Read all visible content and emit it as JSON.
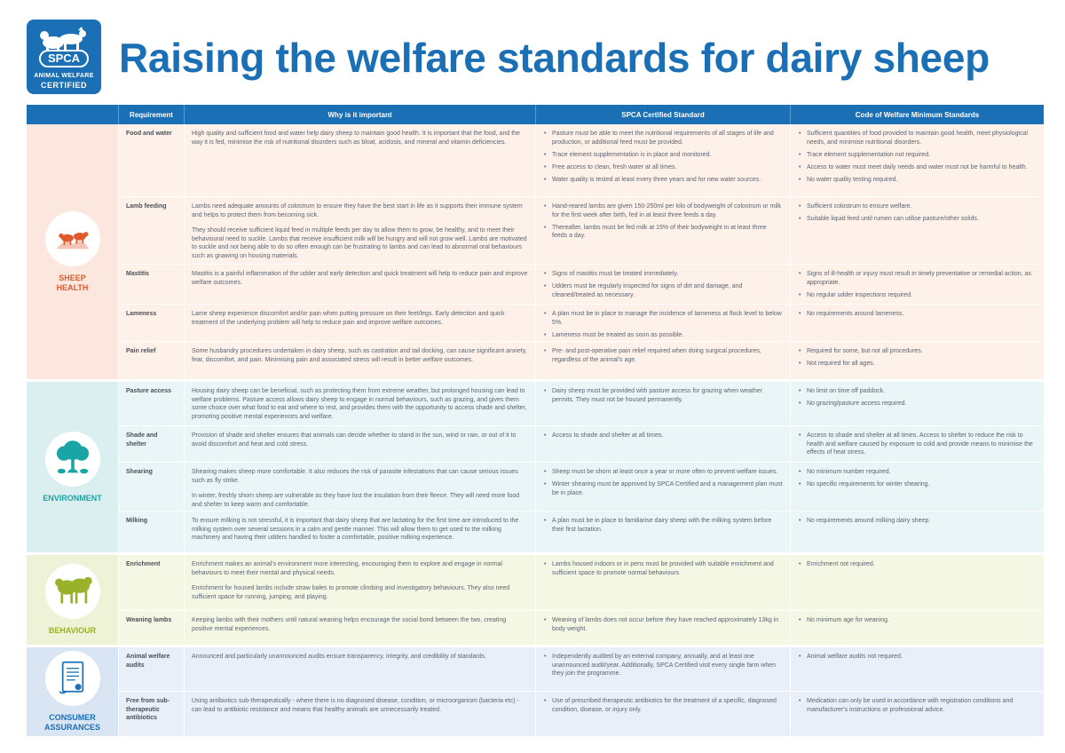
{
  "logo": {
    "name": "SPCA",
    "line1": "ANIMAL WELFARE",
    "line2": "CERTIFIED"
  },
  "title": "Raising the welfare standards for dairy sheep",
  "columns": {
    "requirement": "Requirement",
    "why": "Why is it important",
    "spca": "SPCA Certified Standard",
    "code": "Code of Welfare Minimum Standards"
  },
  "colors": {
    "brand": "#1a6fb5",
    "health": "#e05a2b",
    "environment": "#19a5a3",
    "behaviour": "#98b32a",
    "consumer": "#1a6fb5"
  },
  "sections": [
    {
      "label": "SHEEP HEALTH",
      "icon": "sheep-icon",
      "rows": [
        {
          "requirement": "Food and water",
          "why": [
            "High quality and sufficient food and water help dairy sheep to maintain good health. It is important that the food, and the way it is fed, minimise the risk of nutritional disorders such as bloat, acidosis, and mineral and vitamin deficiencies."
          ],
          "spca": [
            "Pasture must be able to meet the nutritional requirements of all stages of life and production, or additional feed must be provided.",
            "Trace element supplementation is in place and monitored.",
            "Free access to clean, fresh water at all times.",
            "Water quality is tested at least every three years and for new water sources."
          ],
          "code": [
            "Sufficient quantities of food provided to maintain good health, meet physiological needs, and minimise nutritional disorders.",
            "Trace element supplementation not required.",
            "Access to water must meet daily needs and water must not be harmful to health.",
            "No water quality testing required."
          ]
        },
        {
          "requirement": "Lamb feeding",
          "why": [
            "Lambs need adequate amounts of colostrum to ensure they have the best start in life as it supports their immune system and helps to protect them from becoming sick.",
            "They should receive sufficient liquid feed in multiple feeds per day to allow them to grow, be healthy, and to meet their behavioural need to suckle. Lambs that receive insufficient milk will be hungry and will not grow well. Lambs are motivated to suckle and not being able to do so often enough can be frustrating to lambs and can lead to abnormal oral behaviours such as gnawing on housing materials."
          ],
          "spca": [
            "Hand-reared lambs are given 150-250ml per kilo of bodyweight of colostrum or milk for the first week after birth, fed in at least three feeds a day.",
            "Thereafter, lambs must be fed milk at 15% of their bodyweight in at least three feeds a day."
          ],
          "code": [
            "Sufficient colostrum to ensure welfare.",
            "Suitable liquid feed until rumen can utilise pasture/other solids."
          ]
        },
        {
          "requirement": "Mastitis",
          "why": [
            "Mastitis is a painful inflammation of the udder and early detection and quick treatment will help to reduce pain and improve welfare outcomes."
          ],
          "spca": [
            "Signs of mastitis must be treated immediately.",
            "Udders must be regularly inspected for signs of dirt and damage, and cleaned/treated as necessary."
          ],
          "code": [
            "Signs of ill-health or injury must result in timely preventative or remedial action, as appropriate.",
            "No regular udder inspections required."
          ]
        },
        {
          "requirement": "Lameness",
          "why": [
            "Lame sheep experience discomfort and/or pain when putting pressure on their feet/legs. Early detection and quick treatment of the underlying problem will help to reduce pain and improve welfare outcomes."
          ],
          "spca": [
            "A plan must be in place to manage the incidence of lameness at flock level to below 5%.",
            "Lameness must be treated as soon as possible."
          ],
          "code": [
            "No requirements around lameness."
          ]
        },
        {
          "requirement": "Pain relief",
          "why": [
            "Some husbandry procedures undertaken in dairy sheep, such as castration and tail docking, can cause significant anxiety, fear, discomfort, and pain. Minimising pain and associated stress will result in better welfare outcomes."
          ],
          "spca": [
            "Pre- and post-operative pain relief required when doing surgical procedures, regardless of the animal's age."
          ],
          "code": [
            "Required for some, but not all procedures.",
            "Not required for all ages."
          ]
        }
      ]
    },
    {
      "label": "ENVIRONMENT",
      "icon": "tree-icon",
      "rows": [
        {
          "requirement": "Pasture access",
          "why": [
            "Housing dairy sheep can be beneficial, such as protecting them from extreme weather, but prolonged housing can lead to welfare problems. Pasture access allows dairy sheep to engage in normal behaviours, such as grazing, and gives them some choice over what food to eat and where to rest, and provides them with the opportunity to access shade and shelter, promoting positive mental experiences and welfare."
          ],
          "spca": [
            "Dairy sheep must be provided with pasture access for grazing when weather permits. They must not be housed permanently."
          ],
          "code": [
            "No limit on time off paddock.",
            "No grazing/pasture access required."
          ]
        },
        {
          "requirement": "Shade and shelter",
          "why": [
            "Provision of shade and shelter ensures that animals can decide whether to stand in the sun, wind or rain, or out of it to avoid discomfort and heat and cold stress."
          ],
          "spca": [
            "Access to shade and shelter at all times."
          ],
          "code": [
            "Access to shade and shelter at all times. Access to shelter to reduce the risk to health and welfare caused by exposure to cold and provide means to minimise the effects of heat stress."
          ]
        },
        {
          "requirement": "Shearing",
          "why": [
            "Shearing makes sheep more comfortable. It also reduces the risk of parasite infestations that can cause serious issues such as fly strike.",
            "In winter, freshly shorn sheep are vulnerable as they have lost the insulation from their fleece. They will need more food and shelter to keep warm and comfortable."
          ],
          "spca": [
            "Sheep must be shorn at least once a year or more often to prevent welfare issues.",
            "Winter shearing must be approved by SPCA Certified and a management plan must be in place."
          ],
          "code": [
            "No minimum number required.",
            "No specific requirements for winter shearing."
          ]
        },
        {
          "requirement": "Milking",
          "why": [
            "To ensure milking is not stressful, it is important that dairy sheep that are lactating for the first time are introduced to the milking system over several sessions in a calm and gentle manner. This will allow them to get used to the milking machinery and having their udders handled to foster a comfortable, positive milking experience."
          ],
          "spca": [
            "A plan must be in place to familiarise dairy sheep with the milking system before their first lactation."
          ],
          "code": [
            "No requirements around milking dairy sheep."
          ]
        }
      ]
    },
    {
      "label": "BEHAVIOUR",
      "icon": "sheep-pair-icon",
      "rows": [
        {
          "requirement": "Enrichment",
          "why": [
            "Enrichment makes an animal's environment more interesting, encouraging them to explore and engage in normal behaviours to meet their mental and physical needs.",
            "Enrichment for housed lambs include straw bales to promote climbing and investigatory behaviours. They also need sufficient space for running, jumping, and playing."
          ],
          "spca": [
            "Lambs housed indoors or in pens must be provided with suitable enrichment and sufficient space to promote normal behaviours."
          ],
          "code": [
            "Enrichment not required."
          ]
        },
        {
          "requirement": "Weaning lambs",
          "why": [
            "Keeping lambs with their mothers until natural weaning helps encourage the social bond between the two, creating positive mental experiences."
          ],
          "spca": [
            "Weaning of lambs does not occur before they have reached approximately 13kg in body weight."
          ],
          "code": [
            "No minimum age for weaning."
          ]
        }
      ]
    },
    {
      "label": "CONSUMER ASSURANCES",
      "icon": "certificate-scroll-icon",
      "rows": [
        {
          "requirement": "Animal welfare audits",
          "why": [
            "Announced and particularly unannounced audits ensure transparency, integrity, and credibility of standards."
          ],
          "spca": [
            "Independently audited by an external company, annually, and at least one unannounced audit/year. Additionally, SPCA Certified visit every single farm when they join the programme."
          ],
          "code": [
            "Animal welfare audits not required."
          ]
        },
        {
          "requirement": "Free from sub-therapeutic antibiotics",
          "why": [
            "Using antibiotics sub-therapeutically - where there is no diagnosed disease, condition, or microorganism (bacteria etc) - can lead to antibiotic resistance and means that healthy animals are unnecessarily treated."
          ],
          "spca": [
            "Use of prescribed therapeutic antibiotics for the treatment of a specific, diagnosed condition, disease, or injury only."
          ],
          "code": [
            "Medication can only be used in accordance with registration conditions and manufacturer's instructions or professional advice."
          ]
        }
      ]
    }
  ]
}
